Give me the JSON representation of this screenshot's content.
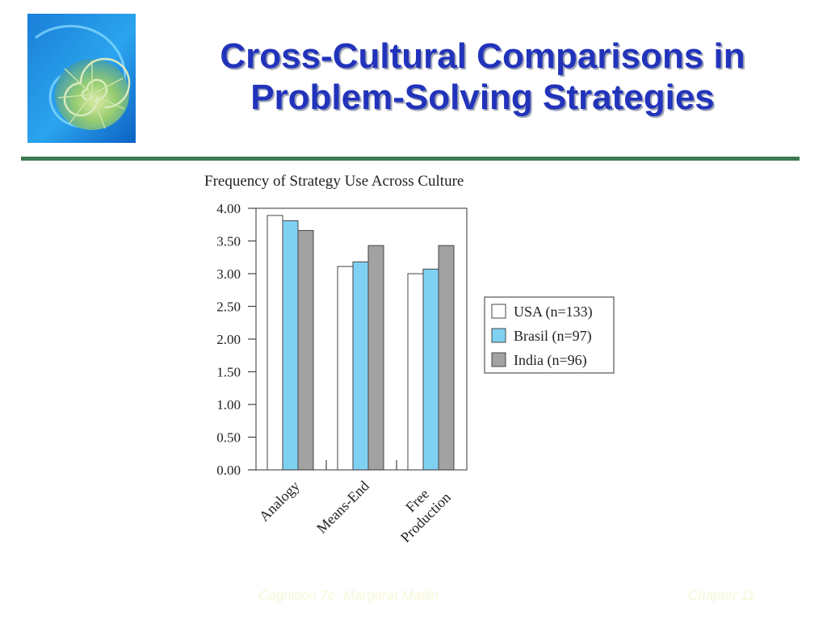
{
  "slide": {
    "title_line1": "Cross-Cultural Comparisons in",
    "title_line2": "Problem-Solving Strategies",
    "footer_left": "Cognition 7e, Margaret Matlin",
    "footer_right": "Chapter 11",
    "logo": {
      "icon": "nautilus-shell-icon"
    }
  },
  "colors": {
    "title": "#2233bb",
    "rule": "#3e7a52",
    "usa": "#ffffff",
    "brasil": "#7fd1f2",
    "india": "#a2a2a2"
  },
  "chart_data": {
    "type": "bar",
    "title": "Frequency of Strategy Use Across Culture",
    "categories": [
      "Analogy",
      "Means-End",
      "Free Production"
    ],
    "category_lines": [
      [
        "Analogy"
      ],
      [
        "Means-End"
      ],
      [
        "Free",
        "Production"
      ]
    ],
    "series": [
      {
        "name": "USA (n=133)",
        "values": [
          3.89,
          3.11,
          3.0
        ],
        "color": "#ffffff"
      },
      {
        "name": "Brasil (n=97)",
        "values": [
          3.81,
          3.18,
          3.07
        ],
        "color": "#7fd1f2"
      },
      {
        "name": "India (n=96)",
        "values": [
          3.66,
          3.43,
          3.43
        ],
        "color": "#a2a2a2"
      }
    ],
    "yticks": [
      "0.00",
      "0.50",
      "1.00",
      "1.50",
      "2.00",
      "2.50",
      "3.00",
      "3.50",
      "4.00"
    ],
    "ylim": [
      0,
      4
    ],
    "xlabel": "",
    "ylabel": "",
    "legend_position": "right",
    "grid": false
  }
}
